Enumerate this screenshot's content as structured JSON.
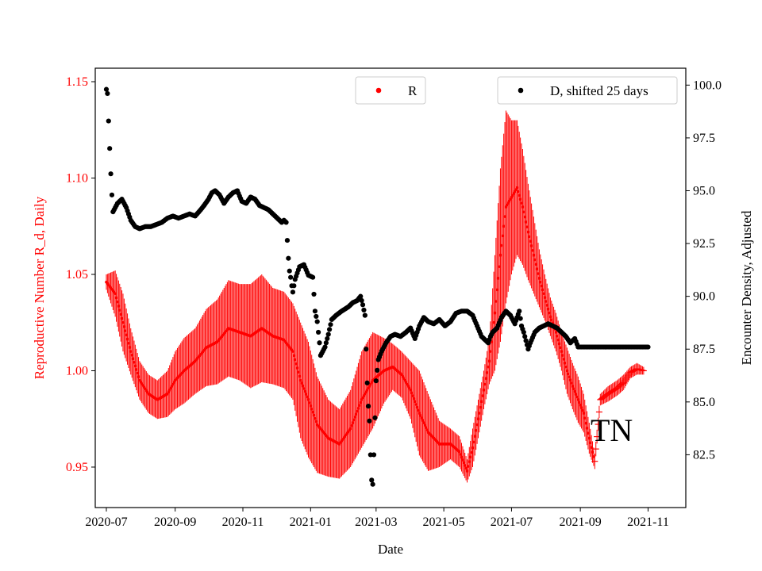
{
  "chart_data": {
    "type": "scatter",
    "xlabel": "Date",
    "ylabel_left": "Reproductive Number R_d, Daily",
    "ylabel_right": "Encounter Density, Adjusted",
    "annotation": "TN",
    "colors": {
      "R": "#ff0000",
      "D": "#000000",
      "axis": "#000000",
      "left_axis_text": "#ff0000"
    },
    "x_range": [
      "2020-06-21",
      "2021-12-05"
    ],
    "x_ticks": [
      "2020-07-01",
      "2020-09-01",
      "2020-11-01",
      "2021-01-01",
      "2021-03-01",
      "2021-05-01",
      "2021-07-01",
      "2021-09-01",
      "2021-11-01"
    ],
    "x_tick_labels": [
      "2020-07",
      "2020-09",
      "2020-11",
      "2021-01",
      "2021-03",
      "2021-05",
      "2021-07",
      "2021-09",
      "2021-11"
    ],
    "ylim_left": [
      0.929,
      1.157
    ],
    "yticks_left": [
      0.95,
      1.0,
      1.05,
      1.1,
      1.15
    ],
    "ytick_labels_left": [
      "0.95",
      "1.00",
      "1.05",
      "1.10",
      "1.15"
    ],
    "ylim_right": [
      80.0,
      100.8
    ],
    "yticks_right": [
      82.5,
      85.0,
      87.5,
      90.0,
      92.5,
      95.0,
      97.5,
      100.0
    ],
    "ytick_labels_right": [
      "82.5",
      "85.0",
      "87.5",
      "90.0",
      "92.5",
      "95.0",
      "97.5",
      "100.0"
    ],
    "legend_R": {
      "label": "R",
      "placement": "top-center"
    },
    "legend_D": {
      "label": "D, shifted 25 days",
      "placement": "top-right"
    },
    "series": [
      {
        "name": "R",
        "axis": "left",
        "marker": "dot-with-error-bar",
        "start_date": "2020-07-01",
        "points": [
          [
            0,
            1.046,
            0.004
          ],
          [
            8,
            1.04,
            0.012
          ],
          [
            15,
            1.025,
            0.015
          ],
          [
            22,
            1.01,
            0.012
          ],
          [
            30,
            0.995,
            0.01
          ],
          [
            38,
            0.988,
            0.01
          ],
          [
            46,
            0.985,
            0.01
          ],
          [
            55,
            0.988,
            0.012
          ],
          [
            62,
            0.995,
            0.015
          ],
          [
            70,
            1.0,
            0.017
          ],
          [
            80,
            1.005,
            0.017
          ],
          [
            90,
            1.012,
            0.02
          ],
          [
            100,
            1.015,
            0.022
          ],
          [
            110,
            1.022,
            0.025
          ],
          [
            120,
            1.02,
            0.025
          ],
          [
            130,
            1.018,
            0.027
          ],
          [
            140,
            1.022,
            0.028
          ],
          [
            150,
            1.018,
            0.025
          ],
          [
            160,
            1.016,
            0.025
          ],
          [
            168,
            1.01,
            0.025
          ],
          [
            175,
            0.995,
            0.03
          ],
          [
            182,
            0.985,
            0.03
          ],
          [
            190,
            0.972,
            0.025
          ],
          [
            200,
            0.965,
            0.02
          ],
          [
            210,
            0.962,
            0.018
          ],
          [
            220,
            0.97,
            0.02
          ],
          [
            230,
            0.985,
            0.025
          ],
          [
            240,
            0.995,
            0.025
          ],
          [
            250,
            1.0,
            0.017
          ],
          [
            258,
            1.002,
            0.012
          ],
          [
            266,
            0.998,
            0.012
          ],
          [
            274,
            0.99,
            0.015
          ],
          [
            282,
            0.978,
            0.022
          ],
          [
            290,
            0.968,
            0.02
          ],
          [
            300,
            0.962,
            0.012
          ],
          [
            310,
            0.962,
            0.008
          ],
          [
            318,
            0.958,
            0.008
          ],
          [
            325,
            0.948,
            0.006
          ],
          [
            330,
            0.96,
            0.01
          ],
          [
            335,
            0.975,
            0.01
          ],
          [
            340,
            0.99,
            0.01
          ],
          [
            345,
            1.005,
            0.012
          ],
          [
            350,
            1.03,
            0.03
          ],
          [
            355,
            1.06,
            0.045
          ],
          [
            360,
            1.085,
            0.05
          ],
          [
            365,
            1.09,
            0.04
          ],
          [
            370,
            1.095,
            0.035
          ],
          [
            375,
            1.085,
            0.03
          ],
          [
            380,
            1.072,
            0.025
          ],
          [
            385,
            1.06,
            0.02
          ],
          [
            390,
            1.048,
            0.015
          ],
          [
            395,
            1.038,
            0.012
          ],
          [
            400,
            1.028,
            0.01
          ],
          [
            405,
            1.02,
            0.01
          ],
          [
            410,
            1.01,
            0.01
          ],
          [
            415,
            1.0,
            0.012
          ],
          [
            420,
            0.992,
            0.012
          ],
          [
            425,
            0.985,
            0.012
          ],
          [
            430,
            0.978,
            0.01
          ],
          [
            435,
            0.965,
            0.008
          ],
          [
            440,
            0.953,
            0.004
          ],
          [
            445,
            0.985,
            0.003
          ],
          [
            452,
            0.988,
            0.004
          ],
          [
            460,
            0.991,
            0.004
          ],
          [
            466,
            0.994,
            0.004
          ],
          [
            472,
            0.999,
            0.003
          ],
          [
            478,
            1.001,
            0.003
          ],
          [
            484,
            1.0,
            0.002
          ]
        ]
      },
      {
        "name": "D, shifted 25 days",
        "axis": "right",
        "marker": "dot",
        "start_date": "2020-07-01",
        "points": [
          [
            0,
            99.8
          ],
          [
            1,
            99.6
          ],
          [
            2,
            98.3
          ],
          [
            3,
            97.0
          ],
          [
            4,
            95.8
          ],
          [
            5,
            94.8
          ],
          [
            6,
            94.0
          ],
          [
            8,
            94.2
          ],
          [
            10,
            94.4
          ],
          [
            14,
            94.6
          ],
          [
            18,
            94.2
          ],
          [
            22,
            93.6
          ],
          [
            26,
            93.3
          ],
          [
            30,
            93.2
          ],
          [
            35,
            93.3
          ],
          [
            40,
            93.3
          ],
          [
            45,
            93.4
          ],
          [
            50,
            93.5
          ],
          [
            55,
            93.7
          ],
          [
            60,
            93.8
          ],
          [
            65,
            93.7
          ],
          [
            70,
            93.8
          ],
          [
            75,
            93.9
          ],
          [
            80,
            93.8
          ],
          [
            85,
            94.1
          ],
          [
            88,
            94.3
          ],
          [
            92,
            94.6
          ],
          [
            95,
            94.9
          ],
          [
            98,
            95.0
          ],
          [
            102,
            94.8
          ],
          [
            106,
            94.4
          ],
          [
            110,
            94.7
          ],
          [
            114,
            94.9
          ],
          [
            118,
            95.0
          ],
          [
            122,
            94.5
          ],
          [
            126,
            94.4
          ],
          [
            130,
            94.7
          ],
          [
            134,
            94.6
          ],
          [
            138,
            94.3
          ],
          [
            142,
            94.2
          ],
          [
            146,
            94.1
          ],
          [
            150,
            93.9
          ],
          [
            154,
            93.7
          ],
          [
            158,
            93.5
          ],
          [
            160,
            93.6
          ],
          [
            162,
            93.5
          ],
          [
            164,
            91.8
          ],
          [
            165,
            91.2
          ],
          [
            166,
            90.9
          ],
          [
            167,
            90.5
          ],
          [
            168,
            90.2
          ],
          [
            170,
            90.8
          ],
          [
            172,
            91.1
          ],
          [
            174,
            91.4
          ],
          [
            178,
            91.5
          ],
          [
            182,
            91.0
          ],
          [
            186,
            90.9
          ],
          [
            188,
            89.3
          ],
          [
            190,
            88.8
          ],
          [
            192,
            87.8
          ],
          [
            193,
            87.2
          ],
          [
            195,
            87.4
          ],
          [
            197,
            87.6
          ],
          [
            200,
            88.2
          ],
          [
            203,
            88.9
          ],
          [
            207,
            89.1
          ],
          [
            212,
            89.3
          ],
          [
            218,
            89.5
          ],
          [
            222,
            89.7
          ],
          [
            226,
            89.8
          ],
          [
            229,
            90.0
          ],
          [
            231,
            89.6
          ],
          [
            233,
            89.1
          ],
          [
            234,
            87.5
          ],
          [
            235,
            85.9
          ],
          [
            236,
            84.8
          ],
          [
            237,
            84.1
          ],
          [
            238,
            82.5
          ],
          [
            239,
            81.3
          ],
          [
            240,
            81.1
          ],
          [
            241,
            82.5
          ],
          [
            243,
            86.0
          ],
          [
            245,
            87.0
          ],
          [
            248,
            87.4
          ],
          [
            252,
            87.8
          ],
          [
            256,
            88.1
          ],
          [
            260,
            88.2
          ],
          [
            265,
            88.1
          ],
          [
            270,
            88.3
          ],
          [
            274,
            88.5
          ],
          [
            278,
            88.0
          ],
          [
            282,
            88.6
          ],
          [
            286,
            89.0
          ],
          [
            290,
            88.8
          ],
          [
            295,
            88.7
          ],
          [
            300,
            88.9
          ],
          [
            305,
            88.6
          ],
          [
            310,
            88.8
          ],
          [
            315,
            89.2
          ],
          [
            320,
            89.3
          ],
          [
            325,
            89.3
          ],
          [
            330,
            89.1
          ],
          [
            334,
            88.6
          ],
          [
            338,
            88.1
          ],
          [
            342,
            87.9
          ],
          [
            344,
            87.8
          ],
          [
            346,
            88.1
          ],
          [
            348,
            88.3
          ],
          [
            352,
            88.5
          ],
          [
            356,
            89.0
          ],
          [
            360,
            89.3
          ],
          [
            364,
            89.1
          ],
          [
            368,
            88.7
          ],
          [
            372,
            89.3
          ],
          [
            374,
            88.6
          ],
          [
            376,
            88.3
          ],
          [
            378,
            87.9
          ],
          [
            380,
            87.5
          ],
          [
            382,
            87.8
          ],
          [
            386,
            88.3
          ],
          [
            390,
            88.5
          ],
          [
            394,
            88.6
          ],
          [
            398,
            88.7
          ],
          [
            402,
            88.6
          ],
          [
            406,
            88.5
          ],
          [
            410,
            88.3
          ],
          [
            414,
            88.1
          ],
          [
            418,
            87.8
          ],
          [
            422,
            88.0
          ],
          [
            425,
            87.6
          ],
          [
            428,
            87.6
          ],
          [
            432,
            87.6
          ],
          [
            436,
            87.6
          ],
          [
            440,
            87.6
          ],
          [
            445,
            87.6
          ],
          [
            450,
            87.6
          ],
          [
            455,
            87.6
          ],
          [
            460,
            87.6
          ],
          [
            465,
            87.6
          ],
          [
            470,
            87.6
          ],
          [
            475,
            87.6
          ],
          [
            480,
            87.6
          ],
          [
            485,
            87.6
          ],
          [
            488,
            87.6
          ]
        ]
      }
    ]
  }
}
